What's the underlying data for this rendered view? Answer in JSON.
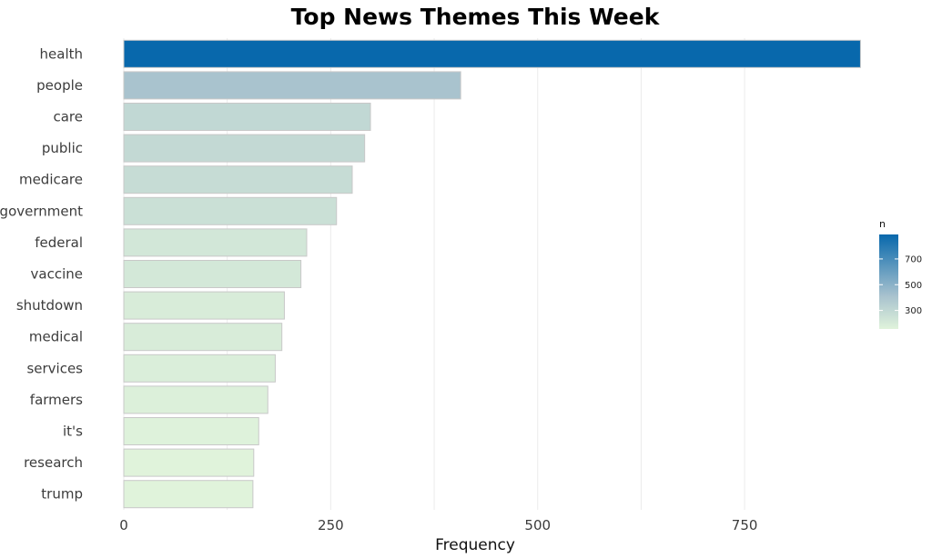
{
  "chart_data": {
    "type": "bar",
    "orientation": "horizontal",
    "title": "Top News Themes This Week",
    "xlabel": "Frequency",
    "ylabel": "",
    "categories": [
      "health",
      "people",
      "care",
      "public",
      "medicare",
      "government",
      "federal",
      "vaccine",
      "shutdown",
      "medical",
      "services",
      "farmers",
      "it's",
      "research",
      "trump"
    ],
    "values": [
      890,
      407,
      298,
      291,
      276,
      257,
      221,
      214,
      194,
      191,
      183,
      174,
      163,
      157,
      156
    ],
    "xlim": [
      0,
      950
    ],
    "xticks": [
      0,
      250,
      500,
      750
    ],
    "grid": "vertical",
    "legend": {
      "title": "n",
      "position": "right",
      "ticks": [
        300,
        500,
        700
      ],
      "range": [
        156,
        890
      ],
      "low_color": "#e0f3db",
      "high_color": "#0868ac",
      "mid_color": "#a8c2ce"
    }
  }
}
